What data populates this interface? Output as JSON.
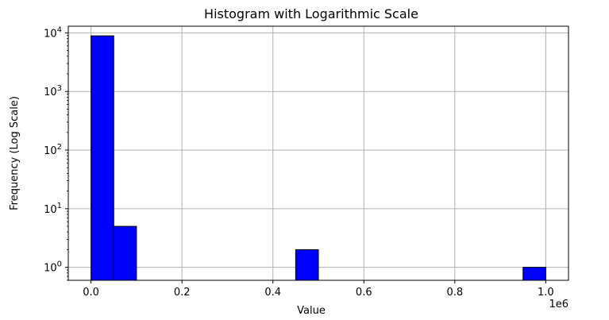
{
  "chart_data": {
    "type": "bar",
    "title": "Histogram with Logarithmic Scale",
    "xlabel": "Value",
    "ylabel": "Frequency (Log Scale)",
    "x_multiplier_label": "1e6",
    "yscale": "log",
    "ylim": [
      0.6,
      13000
    ],
    "xlim": [
      -50000,
      1050000
    ],
    "grid": true,
    "bar_color": "#0000ff",
    "edge_color": "#000000",
    "x_ticks": [
      {
        "value": 0,
        "label": "0.0"
      },
      {
        "value": 200000,
        "label": "0.2"
      },
      {
        "value": 400000,
        "label": "0.4"
      },
      {
        "value": 600000,
        "label": "0.6"
      },
      {
        "value": 800000,
        "label": "0.8"
      },
      {
        "value": 1000000,
        "label": "1.0"
      }
    ],
    "y_ticks": [
      {
        "value": 1,
        "base": "10",
        "exp": "0"
      },
      {
        "value": 10,
        "base": "10",
        "exp": "1"
      },
      {
        "value": 100,
        "base": "10",
        "exp": "2"
      },
      {
        "value": 1000,
        "base": "10",
        "exp": "3"
      },
      {
        "value": 10000,
        "base": "10",
        "exp": "4"
      }
    ],
    "bins": [
      {
        "x0": 0,
        "x1": 50000,
        "count": 8900
      },
      {
        "x0": 50000,
        "x1": 100000,
        "count": 5
      },
      {
        "x0": 450000,
        "x1": 500000,
        "count": 2
      },
      {
        "x0": 950000,
        "x1": 1000000,
        "count": 1
      }
    ]
  }
}
